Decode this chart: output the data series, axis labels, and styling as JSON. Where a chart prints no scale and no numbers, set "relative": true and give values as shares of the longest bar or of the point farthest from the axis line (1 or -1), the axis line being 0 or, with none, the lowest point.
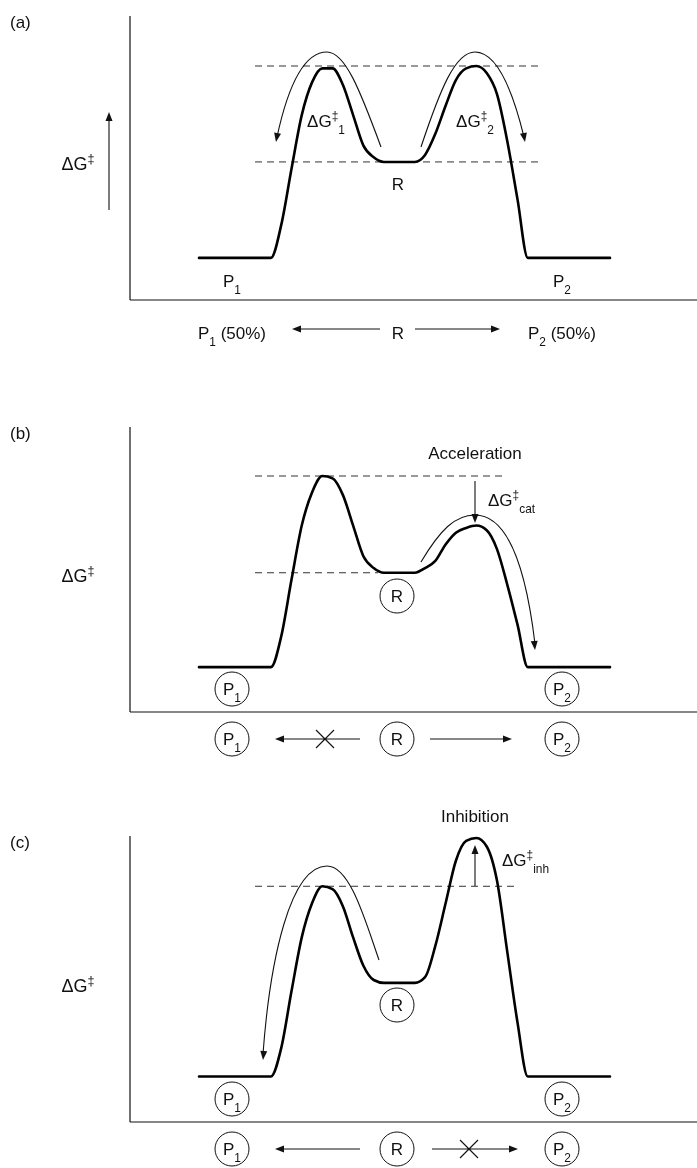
{
  "chart_data": [
    {
      "type": "line",
      "ylabel": "ΔG$^{‡}$",
      "relative": true,
      "line_style": "solid",
      "categories": [
        null,
        null,
        null,
        null,
        null,
        null,
        null,
        null,
        null,
        null,
        null,
        null,
        null,
        null,
        null,
        null,
        null,
        null,
        null,
        null,
        null,
        null,
        null,
        null,
        null,
        null,
        null,
        null,
        null,
        null,
        null,
        null,
        null,
        null,
        null,
        null,
        null,
        null,
        null,
        null,
        null
      ],
      "series": [
        {
          "color": "#000000",
          "values": [
            0.18,
            0.18,
            0.18,
            0.18,
            0.18,
            0.18,
            0.18,
            0.18,
            0.32,
            0.56,
            0.79,
            0.93,
            0.99,
            0.99,
            0.92,
            0.79,
            0.66,
            0.61,
            0.59,
            0.59,
            0.59,
            0.59,
            0.62,
            0.71,
            0.83,
            0.94,
            0.99,
            1,
            0.97,
            0.88,
            0.68,
            0.43,
            0.18,
            0.18,
            0.18,
            0.18,
            0.18,
            0.18,
            0.18,
            0.18,
            0.18
          ]
        }
      ],
      "ref_lines": [
        {
          "axis": "y",
          "value": 1,
          "line_style": "dashed"
        },
        {
          "axis": "y",
          "value": 0.59,
          "line_style": "dashed"
        }
      ],
      "annotations": [
        "(a)",
        "ΔG$^{‡}$$_{1}$",
        "ΔG$^{‡}$$_{2}$",
        "R",
        "P$_{1}$",
        "P$_{2}$",
        "P$_{1}$ (50%)",
        "R",
        "P$_{2}$ (50%)"
      ]
    },
    {
      "type": "line",
      "ylabel": "ΔG$^{‡}$",
      "relative": true,
      "line_style": "solid",
      "categories": [
        null,
        null,
        null,
        null,
        null,
        null,
        null,
        null,
        null,
        null,
        null,
        null,
        null,
        null,
        null,
        null,
        null,
        null,
        null,
        null,
        null,
        null,
        null,
        null,
        null,
        null,
        null,
        null,
        null,
        null,
        null,
        null,
        null,
        null,
        null,
        null,
        null,
        null,
        null,
        null,
        null
      ],
      "series": [
        {
          "color": "#000000",
          "values": [
            0.19,
            0.19,
            0.19,
            0.19,
            0.19,
            0.19,
            0.19,
            0.19,
            0.32,
            0.56,
            0.79,
            0.93,
            1,
            0.99,
            0.92,
            0.79,
            0.66,
            0.61,
            0.59,
            0.59,
            0.59,
            0.59,
            0.61,
            0.64,
            0.71,
            0.76,
            0.78,
            0.79,
            0.77,
            0.69,
            0.54,
            0.37,
            0.19,
            0.19,
            0.19,
            0.19,
            0.19,
            0.19,
            0.19,
            0.19,
            0.19
          ]
        }
      ],
      "ref_lines": [
        {
          "axis": "y",
          "value": 1,
          "line_style": "dashed"
        },
        {
          "axis": "y",
          "value": 0.59,
          "line_style": "dashed"
        }
      ],
      "annotations": [
        "(b)",
        "Acceleration",
        "ΔG$^{‡}$$_{cat}$",
        "R",
        "P$_{1}$",
        "P$_{2}$",
        "P$_{1}$",
        "R",
        "P$_{2}$"
      ]
    },
    {
      "type": "line",
      "ylabel": "ΔG$^{‡}$",
      "relative": true,
      "line_style": "solid",
      "categories": [
        null,
        null,
        null,
        null,
        null,
        null,
        null,
        null,
        null,
        null,
        null,
        null,
        null,
        null,
        null,
        null,
        null,
        null,
        null,
        null,
        null,
        null,
        null,
        null,
        null,
        null,
        null,
        null,
        null,
        null,
        null,
        null,
        null,
        null,
        null,
        null,
        null,
        null,
        null,
        null,
        null
      ],
      "series": [
        {
          "color": "#000000",
          "values": [
            0.16,
            0.16,
            0.16,
            0.16,
            0.16,
            0.16,
            0.16,
            0.16,
            0.26,
            0.46,
            0.65,
            0.77,
            0.83,
            0.82,
            0.76,
            0.65,
            0.55,
            0.5,
            0.49,
            0.49,
            0.49,
            0.49,
            0.51,
            0.62,
            0.77,
            0.92,
            0.99,
            1,
            0.97,
            0.85,
            0.6,
            0.35,
            0.16,
            0.16,
            0.16,
            0.16,
            0.16,
            0.16,
            0.16,
            0.16,
            0.16
          ]
        }
      ],
      "ref_lines": [
        {
          "axis": "y",
          "value": 0.83,
          "line_style": "dashed"
        }
      ],
      "annotations": [
        "(c)",
        "Inhibition",
        "ΔG$^{‡}$$_{inh}$",
        "R",
        "P$_{1}$",
        "P$_{2}$",
        "P$_{1}$",
        "R",
        "P$_{2}$"
      ]
    }
  ]
}
